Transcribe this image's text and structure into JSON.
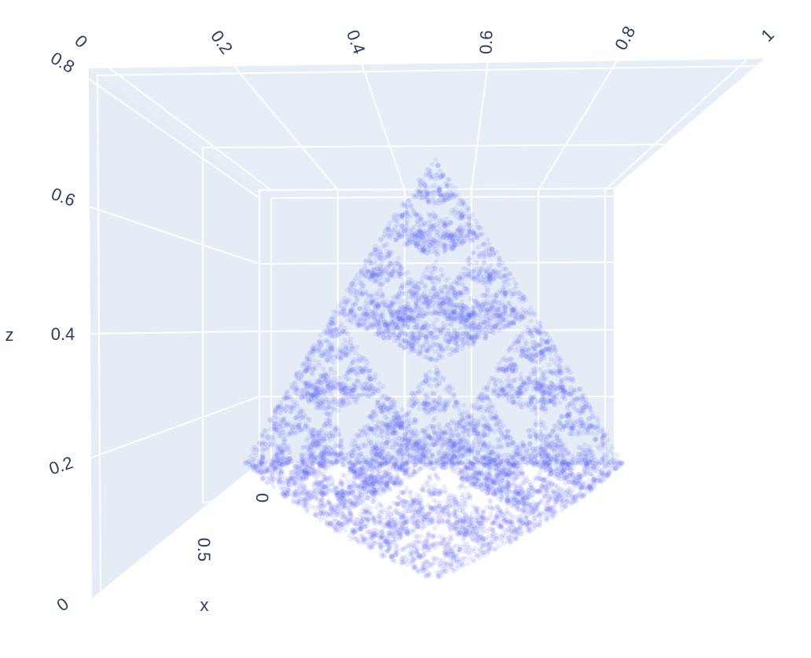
{
  "chart_data": {
    "type": "scatter3d",
    "title": "",
    "description": "Chaos-game Sierpinski pyramid point cloud",
    "marker_color": "#636efa",
    "marker_opacity": 0.12,
    "pane_color": "#e5ecf6",
    "grid_color": "#ffffff",
    "axes": {
      "x": {
        "label": "x",
        "ticks": [
          "0",
          "0.5"
        ]
      },
      "y": {
        "label": "",
        "ticks": [
          "0",
          "0.2",
          "0.4",
          "0.6",
          "0.8",
          "1"
        ]
      },
      "z": {
        "label": "z",
        "ticks": [
          "0",
          "0.2",
          "0.4",
          "0.6",
          "0.8"
        ]
      }
    },
    "pyramid_vertices": [
      [
        0,
        0,
        0
      ],
      [
        1,
        0,
        0
      ],
      [
        0.5,
        0.866,
        0
      ],
      [
        0.5,
        0.289,
        0.816
      ]
    ],
    "n_points_drawn": 9000
  }
}
